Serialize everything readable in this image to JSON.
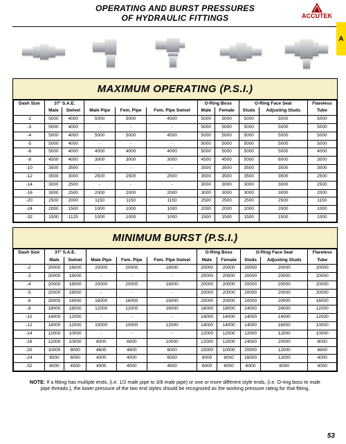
{
  "header": {
    "title_line1": "OPERATING AND BURST PRESSURES",
    "title_line2": "OF HYDRAULIC FITTINGS",
    "brand": "ACCUTEK"
  },
  "side_tab": {
    "letter": "A"
  },
  "page_number": "53",
  "colors": {
    "section_bg": "#f6efc8",
    "tab_bg": "#ffdd00",
    "logo": "#a00000"
  },
  "columns": {
    "groups": [
      {
        "label": "Dash Size",
        "span": 1,
        "sub": [
          ""
        ]
      },
      {
        "label": "37° S.A.E.",
        "span": 2,
        "sub": [
          "Male",
          "Swivel"
        ]
      },
      {
        "label": "",
        "span": 3,
        "sub": [
          "Male Pipe",
          "Fem. Pipe",
          "Fem. Pipe Swivel"
        ]
      },
      {
        "label": "O-Ring Boss",
        "span": 2,
        "sub": [
          "Male",
          "Female"
        ]
      },
      {
        "label": "O-Ring Face Seal",
        "span": 2,
        "sub": [
          "Studs",
          "Adjusting Studs"
        ]
      },
      {
        "label": "Flareless",
        "span": 1,
        "sub": [
          "Tube"
        ]
      }
    ]
  },
  "operating": {
    "title": "MAXIMUM OPERATING (P.S.I.)",
    "rows": [
      [
        "-2",
        "5000",
        "4000",
        "5000",
        "5000",
        "4500",
        "5000",
        "5000",
        "5000",
        "5000",
        "5000"
      ],
      [
        "-3",
        "5000",
        "4000",
        "-",
        "-",
        "-",
        "5000",
        "5000",
        "5000",
        "5000",
        "5000"
      ],
      [
        "-4",
        "5000",
        "4000",
        "5000",
        "5000",
        "4500",
        "5000",
        "5000",
        "5000",
        "5000",
        "5000"
      ],
      [
        "-5",
        "5000",
        "4000",
        "-",
        "-",
        "-",
        "5000",
        "5000",
        "5000",
        "5000",
        "5000"
      ],
      [
        "-6",
        "5000",
        "4000",
        "4000",
        "4000",
        "4000",
        "5000",
        "5000",
        "5000",
        "5000",
        "4000"
      ],
      [
        "-8",
        "4500",
        "4000",
        "3000",
        "3000",
        "3000",
        "4500",
        "4500",
        "5000",
        "6000",
        "3000"
      ],
      [
        "-10",
        "3500",
        "3500",
        "-",
        "-",
        "-",
        "3500",
        "3500",
        "3500",
        "3500",
        "3000"
      ],
      [
        "-12",
        "3500",
        "3000",
        "2500",
        "2500",
        "2500",
        "3500",
        "3500",
        "3500",
        "3500",
        "2500"
      ],
      [
        "-14",
        "3000",
        "2500",
        "-",
        "-",
        "-",
        "3000",
        "3000",
        "3000",
        "3000",
        "2500"
      ],
      [
        "-16",
        "3000",
        "2500",
        "2000",
        "2000",
        "2000",
        "3000",
        "3000",
        "3000",
        "3000",
        "2000"
      ],
      [
        "-20",
        "2500",
        "2000",
        "1150",
        "1150",
        "1150",
        "2500",
        "2500",
        "2500",
        "2500",
        "1150"
      ],
      [
        "-24",
        "2000",
        "1500",
        "1000",
        "1000",
        "1000",
        "2000",
        "2000",
        "2000",
        "2000",
        "1000"
      ],
      [
        "-32",
        "1500",
        "1125",
        "1000",
        "1000",
        "1000",
        "1500",
        "1500",
        "1500",
        "1500",
        "1000"
      ]
    ]
  },
  "burst": {
    "title": "MINIMUM BURST (P.S.I.)",
    "rows": [
      [
        "-2",
        "20000",
        "16000",
        "20000",
        "20000",
        "18000",
        "20000",
        "20000",
        "20000",
        "20000",
        "20000"
      ],
      [
        "-3",
        "20000",
        "16000",
        "-",
        "-",
        "-",
        "20000",
        "20000",
        "20000",
        "20000",
        "20000"
      ],
      [
        "-4",
        "20000",
        "16000",
        "20000",
        "20000",
        "18000",
        "20000",
        "20000",
        "20000",
        "20000",
        "20000"
      ],
      [
        "-5",
        "20000",
        "16000",
        "-",
        "-",
        "-",
        "20000",
        "20000",
        "20000",
        "20000",
        "20000"
      ],
      [
        "-6",
        "20000",
        "16000",
        "16000",
        "16000",
        "16000",
        "20000",
        "20000",
        "20000",
        "20000",
        "16000"
      ],
      [
        "-8",
        "18000",
        "16000",
        "12000",
        "12000",
        "16000",
        "18000",
        "18000",
        "24000",
        "24000",
        "12000"
      ],
      [
        "-10",
        "14000",
        "12000",
        "-",
        "-",
        "-",
        "14000",
        "14000",
        "14000",
        "14000",
        "12000"
      ],
      [
        "-12",
        "14000",
        "12000",
        "10000",
        "10000",
        "12000",
        "14000",
        "14000",
        "14000",
        "16000",
        "10000"
      ],
      [
        "-14",
        "12000",
        "10000",
        "-",
        "-",
        "-",
        "12000",
        "12000",
        "12000",
        "12000",
        "10000"
      ],
      [
        "-16",
        "12000",
        "10000",
        "8000",
        "8000",
        "10000",
        "12000",
        "12000",
        "24000",
        "20000",
        "8000"
      ],
      [
        "-20",
        "10000",
        "8000",
        "4600",
        "4600",
        "6000",
        "10000",
        "10000",
        "20000",
        "12000",
        "4600"
      ],
      [
        "-24",
        "8000",
        "6000",
        "4000",
        "4000",
        "6000",
        "8000",
        "8000",
        "16000",
        "12000",
        "4000"
      ],
      [
        "-32",
        "6000",
        "4500",
        "4000",
        "4000",
        "4500",
        "6000",
        "6000",
        "6000",
        "6000",
        "4000"
      ]
    ]
  },
  "note": {
    "label": "NOTE:",
    "text": "If a fitting has multiple ends, (i.e. 1/2 male pipe to 3/8 male pipe) or one or more different style ends, (i.e. O-ring boss to male pipe threads.), the lower pressure of the two end styles should be recognized as the working pressure rating for that fitting."
  }
}
